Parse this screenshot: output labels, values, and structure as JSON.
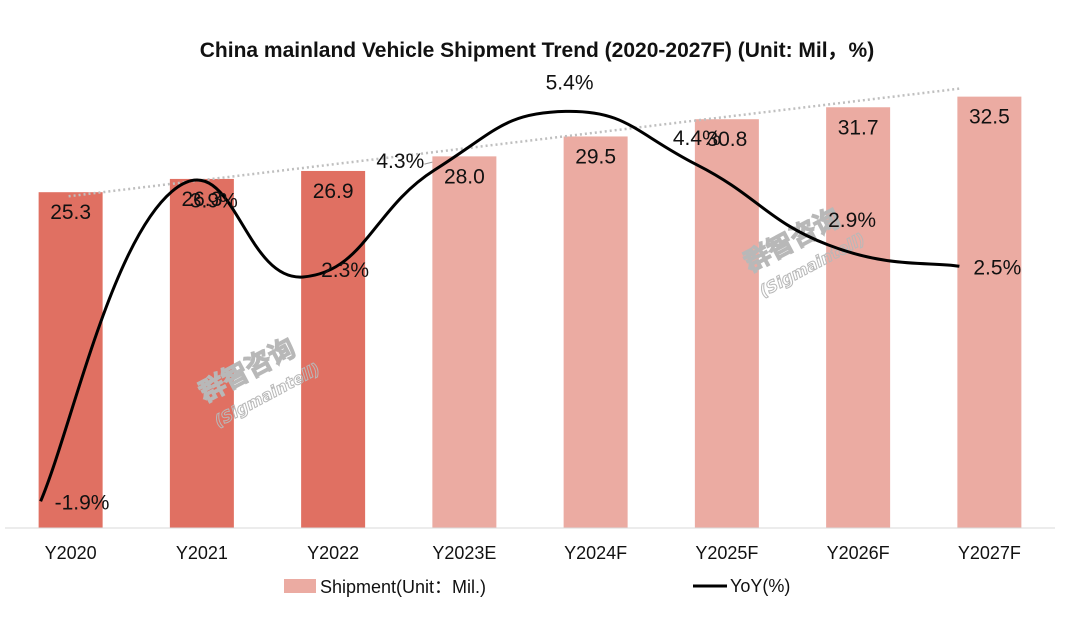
{
  "chart_data": {
    "type": "bar",
    "title": "China mainland Vehicle Shipment Trend (2020-2027F) (Unit: Mil，%)",
    "categories": [
      "Y2020",
      "Y2021",
      "Y2022",
      "Y2023E",
      "Y2024F",
      "Y2025F",
      "Y2026F",
      "Y2027F"
    ],
    "series": [
      {
        "name": "Shipment(Unit：Mil.)",
        "type": "bar",
        "values": [
          25.3,
          26.3,
          26.9,
          28.0,
          29.5,
          30.8,
          31.7,
          32.5
        ],
        "labels": [
          "25.3",
          "26.3",
          "26.9",
          "28.0",
          "29.5",
          "30.8",
          "31.7",
          "32.5"
        ],
        "colors": [
          "#e07062",
          "#e07062",
          "#e07062",
          "#ebaba2",
          "#ebaba2",
          "#ebaba2",
          "#ebaba2",
          "#ebaba2"
        ]
      },
      {
        "name": "YoY(%)",
        "type": "line",
        "smooth": true,
        "values": [
          -1.9,
          3.9,
          2.3,
          4.3,
          5.4,
          4.4,
          2.9,
          2.5
        ],
        "labels": [
          "-1.9%",
          "3.9%",
          "2.3%",
          "4.3%",
          "5.4%",
          "4.4%",
          "2.9%",
          "2.5%"
        ],
        "color": "#000000"
      }
    ],
    "trendline": {
      "type": "linear",
      "of": "Shipment(Unit：Mil.)",
      "style": "dotted",
      "color": "#bfbfbf"
    },
    "ylim": [
      0,
      33
    ],
    "y2lim": [
      -2.4,
      5.8
    ],
    "xlabel": "",
    "ylabel": "",
    "grid": false,
    "legend": "bottom"
  },
  "watermark": {
    "text": "群智咨询",
    "sub": "(Sigmaintell)"
  },
  "colors": {
    "actual_bar": "#e07062",
    "forecast_bar": "#ebaba2",
    "line": "#000000",
    "trend": "#bfbfbf",
    "axis": "#d9d9d9"
  }
}
